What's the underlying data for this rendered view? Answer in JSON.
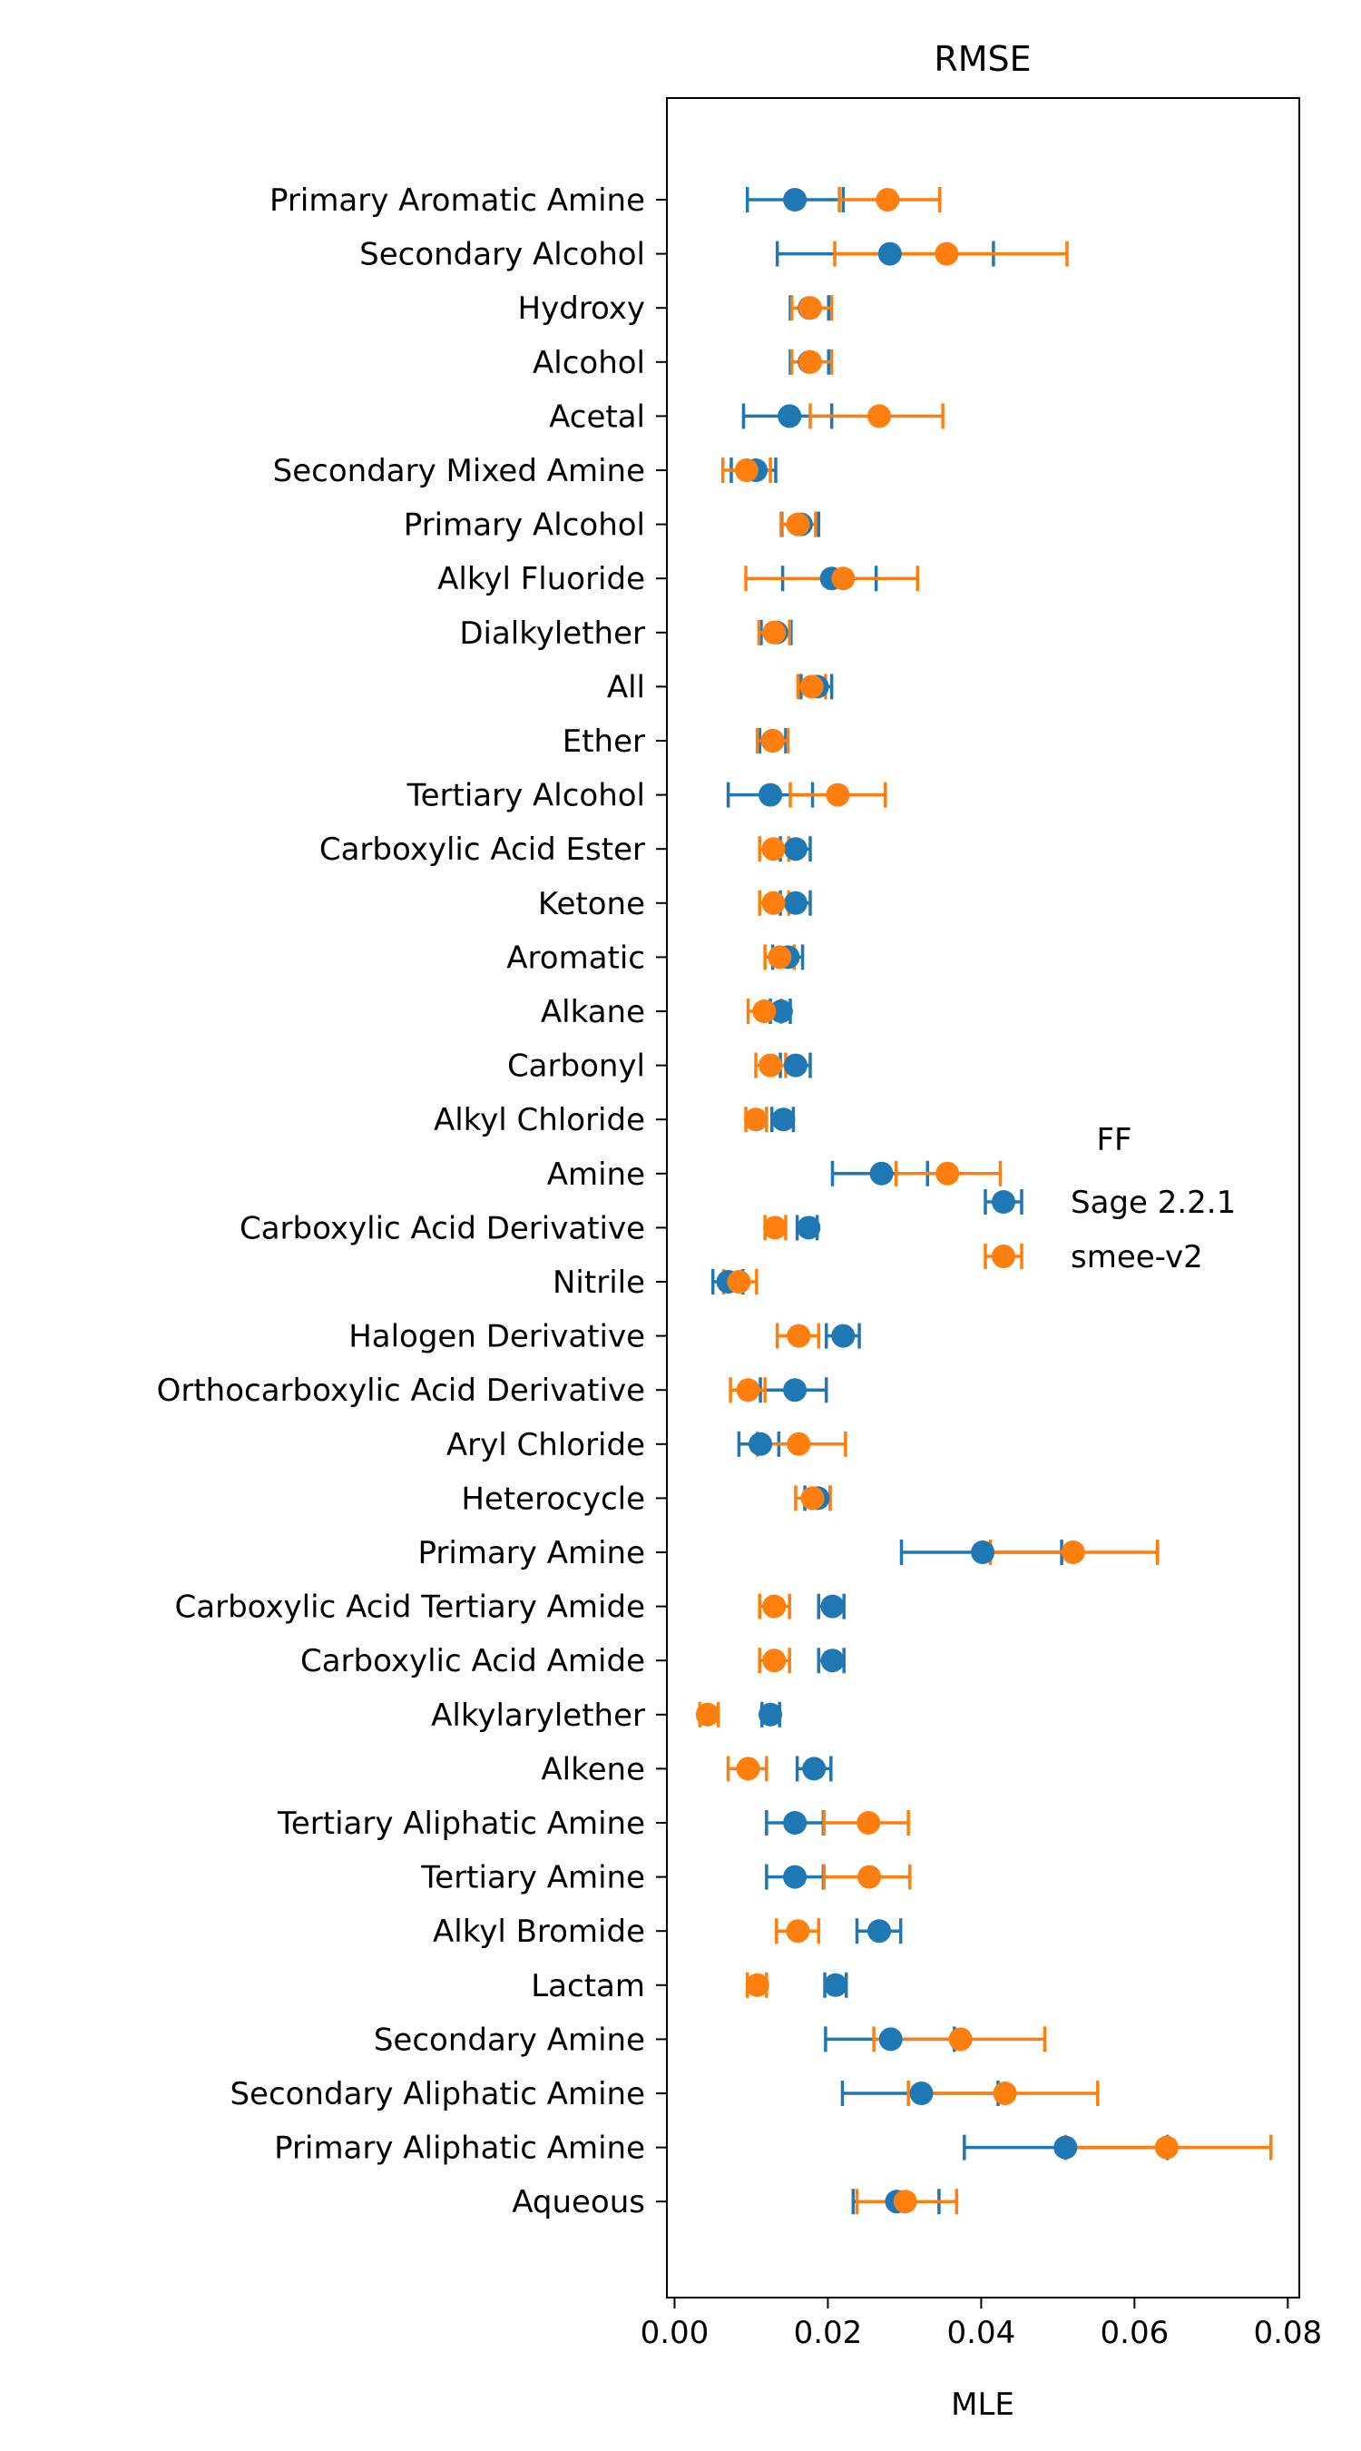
{
  "chart_data": {
    "type": "scatter",
    "title": "RMSE",
    "xlabel": "MLE",
    "ylabel": "",
    "xlim": [
      -0.001,
      0.0815
    ],
    "xticks": [
      "0.00",
      "0.02",
      "0.04",
      "0.06",
      "0.08"
    ],
    "grid": false,
    "legend": {
      "title": "FF",
      "placement": "right",
      "entries": [
        "Sage 2.2.1",
        "smee-v2"
      ]
    },
    "categories": [
      "Primary Aromatic Amine",
      "Secondary Alcohol",
      "Hydroxy",
      "Alcohol",
      "Acetal",
      "Secondary Mixed Amine",
      "Primary Alcohol",
      "Alkyl Fluoride",
      "Dialkylether",
      "All",
      "Ether",
      "Tertiary Alcohol",
      "Carboxylic Acid Ester",
      "Ketone",
      "Aromatic",
      "Alkane",
      "Carbonyl",
      "Alkyl Chloride",
      "Amine",
      "Carboxylic Acid Derivative",
      "Nitrile",
      "Halogen Derivative",
      "Orthocarboxylic Acid Derivative",
      "Aryl Chloride",
      "Heterocycle",
      "Primary Amine",
      "Carboxylic Acid Tertiary Amide",
      "Carboxylic Acid Amide",
      "Alkylarylether",
      "Alkene",
      "Tertiary Aliphatic Amine",
      "Tertiary Amine",
      "Alkyl Bromide",
      "Lactam",
      "Secondary Amine",
      "Secondary Aliphatic Amine",
      "Primary Aliphatic Amine",
      "Aqueous"
    ],
    "series": [
      {
        "name": "Sage 2.2.1",
        "color": "#1f77b4",
        "values": [
          0.0157,
          0.0281,
          0.0176,
          0.0176,
          0.015,
          0.0106,
          0.0165,
          0.0205,
          0.0133,
          0.0186,
          0.0128,
          0.0125,
          0.0158,
          0.0158,
          0.0148,
          0.0139,
          0.0158,
          0.0142,
          0.027,
          0.0175,
          0.007,
          0.022,
          0.0157,
          0.0112,
          0.0187,
          0.0402,
          0.0206,
          0.0206,
          0.0125,
          0.0182,
          0.0157,
          0.0157,
          0.0267,
          0.021,
          0.0282,
          0.0322,
          0.051,
          0.029
        ],
        "err_low": [
          0.0095,
          0.0134,
          0.0151,
          0.0151,
          0.009,
          0.0074,
          0.014,
          0.0141,
          0.0113,
          0.0165,
          0.0111,
          0.007,
          0.0138,
          0.0138,
          0.0128,
          0.0125,
          0.0138,
          0.0127,
          0.0206,
          0.016,
          0.005,
          0.0198,
          0.0112,
          0.0084,
          0.017,
          0.0296,
          0.0188,
          0.0188,
          0.0114,
          0.016,
          0.012,
          0.012,
          0.0238,
          0.0196,
          0.0197,
          0.0219,
          0.0378,
          0.0233
        ],
        "err_high": [
          0.022,
          0.0416,
          0.0201,
          0.0201,
          0.0205,
          0.0132,
          0.0188,
          0.0263,
          0.0152,
          0.0205,
          0.0145,
          0.018,
          0.0177,
          0.0177,
          0.0167,
          0.0151,
          0.0177,
          0.0155,
          0.033,
          0.0186,
          0.0089,
          0.0241,
          0.0198,
          0.0136,
          0.0203,
          0.0505,
          0.0221,
          0.0221,
          0.0137,
          0.0204,
          0.0194,
          0.0194,
          0.0295,
          0.0224,
          0.0365,
          0.0422,
          0.0643,
          0.0345
        ]
      },
      {
        "name": "smee-v2",
        "color": "#ff7f0e",
        "values": [
          0.0278,
          0.0355,
          0.0177,
          0.0177,
          0.0267,
          0.0094,
          0.0161,
          0.022,
          0.013,
          0.0179,
          0.0128,
          0.0213,
          0.0129,
          0.0129,
          0.0137,
          0.0117,
          0.0125,
          0.0106,
          0.0356,
          0.0131,
          0.0084,
          0.0162,
          0.0096,
          0.0162,
          0.018,
          0.052,
          0.013,
          0.013,
          0.0043,
          0.0096,
          0.0253,
          0.0254,
          0.0161,
          0.0108,
          0.0373,
          0.0431,
          0.0642,
          0.0301
        ],
        "err_low": [
          0.0215,
          0.0209,
          0.0153,
          0.0153,
          0.0177,
          0.0063,
          0.0139,
          0.0093,
          0.011,
          0.0161,
          0.0108,
          0.0151,
          0.0111,
          0.0111,
          0.0118,
          0.0096,
          0.0106,
          0.0093,
          0.0289,
          0.0118,
          0.0064,
          0.0134,
          0.0073,
          0.0108,
          0.0158,
          0.0412,
          0.0111,
          0.0111,
          0.0033,
          0.007,
          0.0195,
          0.0195,
          0.0133,
          0.0095,
          0.026,
          0.0305,
          0.051,
          0.0238
        ],
        "err_high": [
          0.0346,
          0.0512,
          0.0205,
          0.0205,
          0.035,
          0.0125,
          0.0184,
          0.0317,
          0.015,
          0.0197,
          0.0148,
          0.0275,
          0.0149,
          0.0149,
          0.0156,
          0.0139,
          0.0145,
          0.012,
          0.0425,
          0.0145,
          0.0107,
          0.0188,
          0.0118,
          0.0223,
          0.0203,
          0.063,
          0.015,
          0.015,
          0.0057,
          0.012,
          0.0305,
          0.0307,
          0.0188,
          0.012,
          0.0483,
          0.0552,
          0.0778,
          0.0368
        ]
      }
    ]
  }
}
